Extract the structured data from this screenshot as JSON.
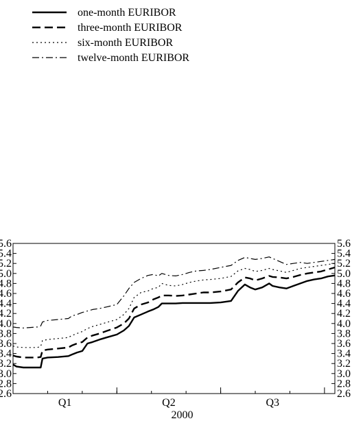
{
  "chart_data": {
    "type": "line",
    "title": "",
    "xlabel": "2000",
    "ylabel": "",
    "ylim": [
      2.6,
      5.6
    ],
    "yticks": [
      2.6,
      2.8,
      3.0,
      3.2,
      3.4,
      3.6,
      3.8,
      4.0,
      4.2,
      4.4,
      4.6,
      4.8,
      5.0,
      5.2,
      5.4,
      5.6
    ],
    "ytick_labels": [
      "2.6",
      "2.8",
      "3.0",
      "3.2",
      "3.4",
      "3.6",
      "3.8",
      "4.0",
      "4.2",
      "4.4",
      "4.6",
      "4.8",
      "5.0",
      "5.2",
      "5.4",
      "5.6"
    ],
    "x_unit": "month of 2000",
    "xlim": [
      0.5,
      9.8
    ],
    "quarter_labels": [
      {
        "label": "Q1",
        "x": 2.0
      },
      {
        "label": "Q2",
        "x": 5.0
      },
      {
        "label": "Q3",
        "x": 8.0
      }
    ],
    "quarter_boundaries": [
      3.5,
      6.5,
      9.5
    ],
    "grid": false,
    "legend_position": "top-left",
    "series": [
      {
        "name": "one-month EURIBOR",
        "style": "solid",
        "x": [
          0.5,
          0.6,
          0.8,
          1.0,
          1.2,
          1.3,
          1.35,
          1.5,
          1.8,
          2.1,
          2.2,
          2.35,
          2.5,
          2.65,
          2.8,
          3.0,
          3.2,
          3.5,
          3.7,
          3.85,
          4.0,
          4.2,
          4.4,
          4.55,
          4.7,
          4.8,
          5.0,
          5.2,
          5.4,
          5.6,
          5.8,
          6.0,
          6.2,
          6.5,
          6.8,
          7.0,
          7.2,
          7.35,
          7.5,
          7.7,
          7.9,
          8.0,
          8.2,
          8.4,
          8.6,
          8.8,
          9.0,
          9.2,
          9.4,
          9.6,
          9.8
        ],
        "y": [
          3.18,
          3.14,
          3.12,
          3.12,
          3.12,
          3.12,
          3.3,
          3.32,
          3.33,
          3.35,
          3.38,
          3.42,
          3.45,
          3.6,
          3.63,
          3.68,
          3.72,
          3.78,
          3.86,
          3.95,
          4.12,
          4.18,
          4.24,
          4.28,
          4.33,
          4.4,
          4.4,
          4.4,
          4.41,
          4.41,
          4.41,
          4.41,
          4.41,
          4.42,
          4.45,
          4.65,
          4.78,
          4.72,
          4.68,
          4.72,
          4.8,
          4.75,
          4.72,
          4.7,
          4.75,
          4.8,
          4.85,
          4.88,
          4.9,
          4.94,
          4.96
        ]
      },
      {
        "name": "three-month EURIBOR",
        "style": "dashed",
        "x": [
          0.5,
          0.6,
          0.8,
          1.0,
          1.2,
          1.3,
          1.35,
          1.5,
          1.8,
          2.1,
          2.2,
          2.35,
          2.5,
          2.65,
          2.8,
          3.0,
          3.2,
          3.5,
          3.7,
          3.85,
          4.0,
          4.2,
          4.4,
          4.55,
          4.7,
          4.8,
          5.0,
          5.2,
          5.4,
          5.6,
          5.8,
          6.0,
          6.2,
          6.5,
          6.8,
          7.0,
          7.2,
          7.35,
          7.5,
          7.7,
          7.9,
          8.0,
          8.2,
          8.4,
          8.6,
          8.8,
          9.0,
          9.2,
          9.4,
          9.6,
          9.8
        ],
        "y": [
          3.36,
          3.34,
          3.32,
          3.32,
          3.32,
          3.33,
          3.46,
          3.48,
          3.5,
          3.52,
          3.56,
          3.6,
          3.63,
          3.72,
          3.76,
          3.8,
          3.85,
          3.92,
          4.0,
          4.1,
          4.3,
          4.38,
          4.42,
          4.48,
          4.52,
          4.56,
          4.56,
          4.55,
          4.56,
          4.58,
          4.6,
          4.62,
          4.62,
          4.64,
          4.68,
          4.82,
          4.92,
          4.9,
          4.86,
          4.9,
          4.95,
          4.93,
          4.92,
          4.9,
          4.93,
          4.97,
          5.0,
          5.02,
          5.04,
          5.08,
          5.12
        ]
      },
      {
        "name": "six-month EURIBOR",
        "style": "dotted",
        "x": [
          0.5,
          0.6,
          0.8,
          1.0,
          1.2,
          1.3,
          1.35,
          1.5,
          1.8,
          2.1,
          2.2,
          2.35,
          2.5,
          2.65,
          2.8,
          3.0,
          3.2,
          3.5,
          3.7,
          3.85,
          4.0,
          4.2,
          4.4,
          4.55,
          4.7,
          4.8,
          5.0,
          5.2,
          5.4,
          5.6,
          5.8,
          6.0,
          6.2,
          6.5,
          6.8,
          7.0,
          7.2,
          7.35,
          7.5,
          7.7,
          7.9,
          8.0,
          8.2,
          8.4,
          8.6,
          8.8,
          9.0,
          9.2,
          9.4,
          9.6,
          9.8
        ],
        "y": [
          3.55,
          3.53,
          3.52,
          3.52,
          3.52,
          3.54,
          3.66,
          3.68,
          3.7,
          3.72,
          3.76,
          3.8,
          3.84,
          3.9,
          3.94,
          3.98,
          4.02,
          4.08,
          4.18,
          4.3,
          4.52,
          4.62,
          4.65,
          4.7,
          4.72,
          4.8,
          4.76,
          4.75,
          4.78,
          4.82,
          4.85,
          4.87,
          4.88,
          4.9,
          4.94,
          5.05,
          5.1,
          5.08,
          5.04,
          5.06,
          5.1,
          5.08,
          5.05,
          5.02,
          5.06,
          5.1,
          5.12,
          5.14,
          5.16,
          5.18,
          5.2
        ]
      },
      {
        "name": "twelve-month EURIBOR",
        "style": "dashdot",
        "x": [
          0.5,
          0.6,
          0.8,
          1.0,
          1.2,
          1.3,
          1.35,
          1.5,
          1.8,
          2.1,
          2.2,
          2.35,
          2.5,
          2.65,
          2.8,
          3.0,
          3.2,
          3.5,
          3.7,
          3.85,
          4.0,
          4.2,
          4.4,
          4.55,
          4.7,
          4.8,
          5.0,
          5.2,
          5.4,
          5.6,
          5.8,
          6.0,
          6.2,
          6.5,
          6.8,
          7.0,
          7.2,
          7.35,
          7.5,
          7.7,
          7.9,
          8.0,
          8.2,
          8.4,
          8.6,
          8.8,
          9.0,
          9.2,
          9.4,
          9.6,
          9.8
        ],
        "y": [
          3.93,
          3.92,
          3.91,
          3.92,
          3.93,
          3.95,
          4.03,
          4.06,
          4.08,
          4.1,
          4.15,
          4.18,
          4.22,
          4.25,
          4.28,
          4.3,
          4.33,
          4.38,
          4.55,
          4.7,
          4.82,
          4.9,
          4.96,
          4.98,
          4.95,
          5.0,
          4.96,
          4.95,
          4.98,
          5.02,
          5.05,
          5.06,
          5.08,
          5.12,
          5.16,
          5.26,
          5.32,
          5.3,
          5.28,
          5.3,
          5.33,
          5.3,
          5.24,
          5.18,
          5.2,
          5.22,
          5.2,
          5.22,
          5.24,
          5.26,
          5.28
        ]
      }
    ]
  }
}
